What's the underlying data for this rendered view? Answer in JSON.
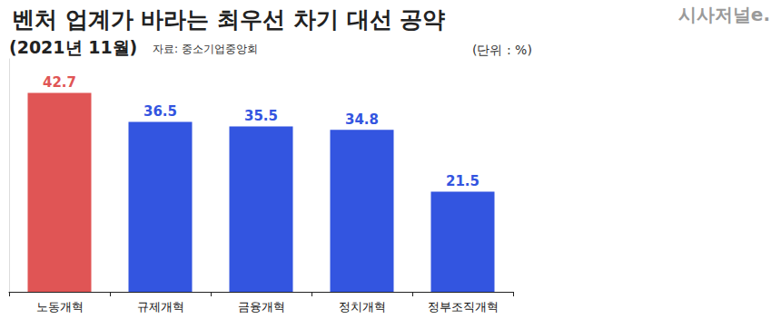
{
  "chart_data": {
    "type": "bar",
    "title": "벤처 업계가 바라는 최우선 차기 대선 공약",
    "subtitle": "(2021년 11월)",
    "annotations": [
      "자료: 중소기업중앙회",
      "(단위 : %)",
      "시사저널e."
    ],
    "categories": [
      "노동개혁",
      "규제개혁",
      "금융개혁",
      "정치개혁",
      "정부조직개혁"
    ],
    "values": [
      42.7,
      36.5,
      35.5,
      34.8,
      21.5
    ],
    "colors": [
      "#e05555",
      "#3355e0",
      "#3355e0",
      "#3355e0",
      "#3355e0"
    ],
    "ylim": [
      0,
      50
    ],
    "grid": false,
    "data_labels": true,
    "tick_labels": "x"
  }
}
